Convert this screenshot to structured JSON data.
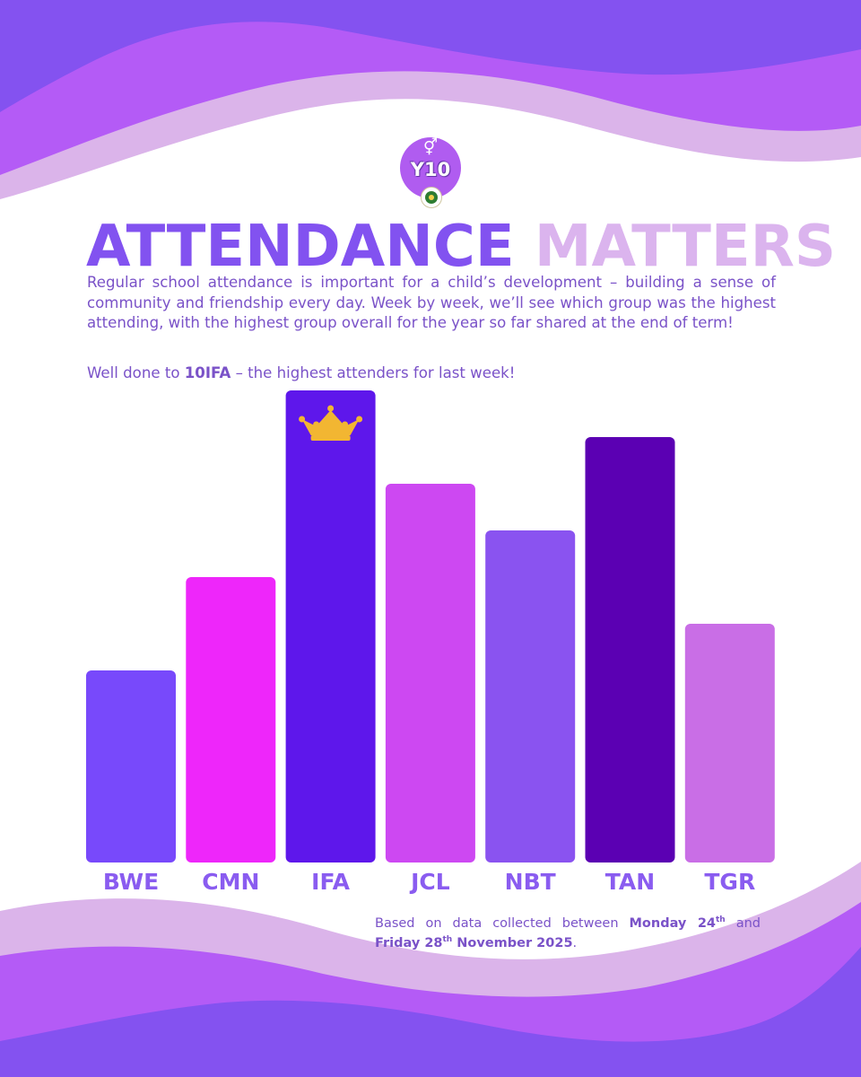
{
  "header": {
    "badge_symbol": "⚥",
    "badge_label": "Y10",
    "title_part1": "ATTENDANCE",
    "title_part2": "MATTERS"
  },
  "intro": {
    "paragraph": "Regular school attendance is important for a child’s development – building a sense of community and friendship every day. Week by week, we’ll see which group was the highest attending, with the highest group overall for the year so far shared at the end of term!",
    "welldone_prefix": "Well done to ",
    "welldone_group": "10IFA",
    "welldone_suffix": " – the highest attenders for last week!"
  },
  "footnote": {
    "prefix": "Based on data collected between ",
    "start_day": "Monday 24",
    "start_sup": "th",
    "conjunction": " and ",
    "end_day": "Friday 28",
    "end_sup": "th",
    "end_rest": " November 2025",
    "suffix": "."
  },
  "colors": {
    "top_wave_dark": "#8452f0",
    "top_wave_mid": "#b45bf6",
    "top_wave_light": "#dbb4ea",
    "title_dark": "#8252f0",
    "title_light": "#dbb4ee",
    "label": "#8a5cf0",
    "crown": "#f2b632"
  },
  "chart_data": {
    "type": "bar",
    "title": "",
    "xlabel": "",
    "ylabel": "",
    "ylim": [
      0,
      100
    ],
    "categories": [
      "BWE",
      "CMN",
      "IFA",
      "JCL",
      "NBT",
      "TAN",
      "TGR"
    ],
    "values": [
      40,
      60,
      100,
      80,
      70,
      90,
      50
    ],
    "bar_colors": [
      "#7849fb",
      "#ee26fa",
      "#5e17eb",
      "#cd48f2",
      "#8a53f0",
      "#5b00b3",
      "#c96ee6"
    ],
    "highlight": "IFA",
    "highlight_icon": "crown-icon"
  }
}
